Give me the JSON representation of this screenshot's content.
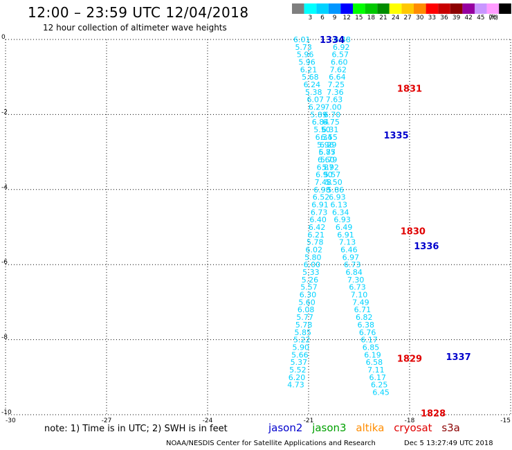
{
  "header": {
    "title": "12:00 – 23:59 UTC 12/04/2018",
    "subtitle": "12 hour collection of altimeter wave heights"
  },
  "legend": {
    "unit": "(ft)",
    "bins": [
      {
        "label": "",
        "color": "#7f7f7f"
      },
      {
        "label": "3",
        "color": "#00ffff"
      },
      {
        "label": "6",
        "color": "#00d2ff"
      },
      {
        "label": "9",
        "color": "#0096ff"
      },
      {
        "label": "12",
        "color": "#0000ff"
      },
      {
        "label": "15",
        "color": "#00ff00"
      },
      {
        "label": "18",
        "color": "#00c800"
      },
      {
        "label": "21",
        "color": "#008c00"
      },
      {
        "label": "24",
        "color": "#ffff00"
      },
      {
        "label": "27",
        "color": "#ffc800"
      },
      {
        "label": "30",
        "color": "#ff8c00"
      },
      {
        "label": "33",
        "color": "#ff0000"
      },
      {
        "label": "36",
        "color": "#c80000"
      },
      {
        "label": "39",
        "color": "#8c0000"
      },
      {
        "label": "42",
        "color": "#9600a0"
      },
      {
        "label": "45",
        "color": "#c896ff"
      },
      {
        "label": "70",
        "color": "#ff9cff"
      },
      {
        "label": "",
        "color": "#000000"
      }
    ]
  },
  "notes": {
    "text": "note: 1) Time is in UTC; 2) SWH is in feet"
  },
  "satellites": [
    {
      "name": "jason2",
      "color": "#0000cc"
    },
    {
      "name": "jason3",
      "color": "#00a000"
    },
    {
      "name": "altika",
      "color": "#ff8c00"
    },
    {
      "name": "cryosat",
      "color": "#e00000"
    },
    {
      "name": "s3a",
      "color": "#8b0000"
    }
  ],
  "footer": {
    "credit": "NOAA/NESDIS Center for Satellite Applications and Research",
    "timestamp": "Dec  5 13:27:49 UTC 2018"
  },
  "chart_data": {
    "type": "scatter",
    "title": "12:00 – 23:59 UTC 12/04/2018",
    "subtitle": "12 hour collection of altimeter wave heights",
    "xlim": [
      -30,
      -15
    ],
    "ylim": [
      -10,
      0
    ],
    "x_ticks": [
      -30,
      -27,
      -24,
      -21,
      -18,
      -15
    ],
    "y_ticks": [
      0,
      -2,
      -4,
      -6,
      -8,
      -10
    ],
    "grid": true,
    "value_color": "#00d2ff",
    "time_labels": [
      {
        "text": "1334",
        "lon": -20.3,
        "lat": 0.0,
        "color": "#0000cc"
      },
      {
        "text": "1831",
        "lon": -18.0,
        "lat": -1.3,
        "color": "#e00000"
      },
      {
        "text": "1335",
        "lon": -18.4,
        "lat": -2.55,
        "color": "#0000cc"
      },
      {
        "text": "1830",
        "lon": -17.9,
        "lat": -5.1,
        "color": "#e00000"
      },
      {
        "text": "1336",
        "lon": -17.5,
        "lat": -5.5,
        "color": "#0000cc"
      },
      {
        "text": "1337",
        "lon": -16.55,
        "lat": -8.45,
        "color": "#0000cc"
      },
      {
        "text": "1829",
        "lon": -18.0,
        "lat": -8.5,
        "color": "#e00000"
      },
      {
        "text": "1828",
        "lon": -17.3,
        "lat": -9.95,
        "color": "#e00000"
      }
    ],
    "series": [
      {
        "name": "jason2",
        "points": [
          {
            "lon": -21.2,
            "lat": 0.0,
            "swh": "6.01"
          },
          {
            "lon": -21.15,
            "lat": -0.2,
            "swh": "5.73"
          },
          {
            "lon": -21.1,
            "lat": -0.4,
            "swh": "5.96"
          },
          {
            "lon": -21.05,
            "lat": -0.6,
            "swh": "5.96"
          },
          {
            "lon": -21.0,
            "lat": -0.8,
            "swh": "6.21"
          },
          {
            "lon": -20.95,
            "lat": -1.0,
            "swh": "5.68"
          },
          {
            "lon": -20.9,
            "lat": -1.2,
            "swh": "6.24"
          },
          {
            "lon": -20.85,
            "lat": -1.4,
            "swh": "5.38"
          },
          {
            "lon": -20.8,
            "lat": -1.6,
            "swh": "6.07"
          },
          {
            "lon": -20.75,
            "lat": -1.8,
            "swh": "6.29"
          },
          {
            "lon": -20.7,
            "lat": -2.0,
            "swh": "5.89"
          },
          {
            "lon": -20.65,
            "lat": -2.2,
            "swh": "6.84"
          },
          {
            "lon": -20.6,
            "lat": -2.4,
            "swh": "5.50"
          },
          {
            "lon": -20.55,
            "lat": -2.6,
            "swh": "6.34"
          },
          {
            "lon": -20.5,
            "lat": -2.8,
            "swh": "5.96"
          },
          {
            "lon": -20.45,
            "lat": -3.0,
            "swh": "5.87"
          },
          {
            "lon": -20.4,
            "lat": -3.2,
            "swh": "5.79"
          },
          {
            "lon": -20.35,
            "lat": -3.4,
            "swh": "5.92"
          },
          {
            "lon": -20.3,
            "lat": -3.6,
            "swh": "5.57"
          },
          {
            "lon": -20.25,
            "lat": -3.8,
            "swh": "5.50"
          },
          {
            "lon": -20.2,
            "lat": -4.0,
            "swh": "5.86"
          },
          {
            "lon": -20.15,
            "lat": -4.2,
            "swh": "6.93"
          },
          {
            "lon": -20.1,
            "lat": -4.4,
            "swh": "6.13"
          },
          {
            "lon": -20.05,
            "lat": -4.6,
            "swh": "6.34"
          },
          {
            "lon": -20.0,
            "lat": -4.8,
            "swh": "6.93"
          },
          {
            "lon": -19.95,
            "lat": -5.0,
            "swh": "6.49"
          },
          {
            "lon": -19.9,
            "lat": -5.2,
            "swh": "6.91"
          },
          {
            "lon": -19.85,
            "lat": -5.4,
            "swh": "7.13"
          },
          {
            "lon": -19.8,
            "lat": -5.6,
            "swh": "6.46"
          },
          {
            "lon": -19.75,
            "lat": -5.8,
            "swh": "6.97"
          },
          {
            "lon": -19.7,
            "lat": -6.0,
            "swh": "6.73"
          },
          {
            "lon": -19.65,
            "lat": -6.2,
            "swh": "6.84"
          },
          {
            "lon": -19.6,
            "lat": -6.4,
            "swh": "7.30"
          },
          {
            "lon": -19.55,
            "lat": -6.6,
            "swh": "6.73"
          },
          {
            "lon": -19.5,
            "lat": -6.8,
            "swh": "7.10"
          },
          {
            "lon": -19.45,
            "lat": -7.0,
            "swh": "7.49"
          },
          {
            "lon": -19.4,
            "lat": -7.2,
            "swh": "6.71"
          },
          {
            "lon": -19.35,
            "lat": -7.4,
            "swh": "6.82"
          },
          {
            "lon": -19.3,
            "lat": -7.6,
            "swh": "6.38"
          },
          {
            "lon": -19.25,
            "lat": -7.8,
            "swh": "6.76"
          },
          {
            "lon": -19.2,
            "lat": -8.0,
            "swh": "6.17"
          },
          {
            "lon": -19.15,
            "lat": -8.2,
            "swh": "6.85"
          },
          {
            "lon": -19.1,
            "lat": -8.4,
            "swh": "6.19"
          },
          {
            "lon": -19.05,
            "lat": -8.6,
            "swh": "6.58"
          },
          {
            "lon": -19.0,
            "lat": -8.8,
            "swh": "7.11"
          },
          {
            "lon": -18.95,
            "lat": -9.0,
            "swh": "6.17"
          },
          {
            "lon": -18.9,
            "lat": -9.2,
            "swh": "6.25"
          },
          {
            "lon": -18.85,
            "lat": -9.4,
            "swh": "6.45"
          }
        ]
      },
      {
        "name": "cryosat",
        "points": [
          {
            "lon": -20.0,
            "lat": 0.0,
            "swh": "6.48"
          },
          {
            "lon": -20.03,
            "lat": -0.2,
            "swh": "6.92"
          },
          {
            "lon": -20.06,
            "lat": -0.4,
            "swh": "6.57"
          },
          {
            "lon": -20.09,
            "lat": -0.6,
            "swh": "6.60"
          },
          {
            "lon": -20.12,
            "lat": -0.8,
            "swh": "7.62"
          },
          {
            "lon": -20.15,
            "lat": -1.0,
            "swh": "6.64"
          },
          {
            "lon": -20.18,
            "lat": -1.2,
            "swh": "7.25"
          },
          {
            "lon": -20.21,
            "lat": -1.4,
            "swh": "7.36"
          },
          {
            "lon": -20.24,
            "lat": -1.6,
            "swh": "7.63"
          },
          {
            "lon": -20.27,
            "lat": -1.8,
            "swh": "7.00"
          },
          {
            "lon": -20.3,
            "lat": -2.0,
            "swh": "6.70"
          },
          {
            "lon": -20.33,
            "lat": -2.2,
            "swh": "6.75"
          },
          {
            "lon": -20.36,
            "lat": -2.4,
            "swh": "6.31"
          },
          {
            "lon": -20.39,
            "lat": -2.6,
            "swh": "6.55"
          },
          {
            "lon": -20.42,
            "lat": -2.8,
            "swh": "6.29"
          },
          {
            "lon": -20.45,
            "lat": -3.0,
            "swh": "6.75"
          },
          {
            "lon": -20.48,
            "lat": -3.2,
            "swh": "6.60"
          },
          {
            "lon": -20.51,
            "lat": -3.4,
            "swh": "6.87"
          },
          {
            "lon": -20.54,
            "lat": -3.6,
            "swh": "6.90"
          },
          {
            "lon": -20.57,
            "lat": -3.8,
            "swh": "7.48"
          },
          {
            "lon": -20.6,
            "lat": -4.0,
            "swh": "6.98"
          },
          {
            "lon": -20.63,
            "lat": -4.2,
            "swh": "6.52"
          },
          {
            "lon": -20.66,
            "lat": -4.4,
            "swh": "6.91"
          },
          {
            "lon": -20.69,
            "lat": -4.6,
            "swh": "6.73"
          },
          {
            "lon": -20.72,
            "lat": -4.8,
            "swh": "6.40"
          },
          {
            "lon": -20.75,
            "lat": -5.0,
            "swh": "6.42"
          },
          {
            "lon": -20.78,
            "lat": -5.2,
            "swh": "6.21"
          },
          {
            "lon": -20.81,
            "lat": -5.4,
            "swh": "5.78"
          },
          {
            "lon": -20.84,
            "lat": -5.6,
            "swh": "6.02"
          },
          {
            "lon": -20.87,
            "lat": -5.8,
            "swh": "5.80"
          },
          {
            "lon": -20.9,
            "lat": -6.0,
            "swh": "6.00"
          },
          {
            "lon": -20.93,
            "lat": -6.2,
            "swh": "5.33"
          },
          {
            "lon": -20.96,
            "lat": -6.4,
            "swh": "5.26"
          },
          {
            "lon": -20.99,
            "lat": -6.6,
            "swh": "5.57"
          },
          {
            "lon": -21.02,
            "lat": -6.8,
            "swh": "6.30"
          },
          {
            "lon": -21.05,
            "lat": -7.0,
            "swh": "5.60"
          },
          {
            "lon": -21.08,
            "lat": -7.2,
            "swh": "6.08"
          },
          {
            "lon": -21.11,
            "lat": -7.4,
            "swh": "5.77"
          },
          {
            "lon": -21.14,
            "lat": -7.6,
            "swh": "5.78"
          },
          {
            "lon": -21.17,
            "lat": -7.8,
            "swh": "5.85"
          },
          {
            "lon": -21.2,
            "lat": -8.0,
            "swh": "5.22"
          },
          {
            "lon": -21.23,
            "lat": -8.2,
            "swh": "5.90"
          },
          {
            "lon": -21.26,
            "lat": -8.4,
            "swh": "5.66"
          },
          {
            "lon": -21.29,
            "lat": -8.6,
            "swh": "5.37"
          },
          {
            "lon": -21.32,
            "lat": -8.8,
            "swh": "5.52"
          },
          {
            "lon": -21.35,
            "lat": -9.0,
            "swh": "6.20"
          },
          {
            "lon": -21.38,
            "lat": -9.2,
            "swh": "4.73"
          }
        ]
      }
    ]
  }
}
